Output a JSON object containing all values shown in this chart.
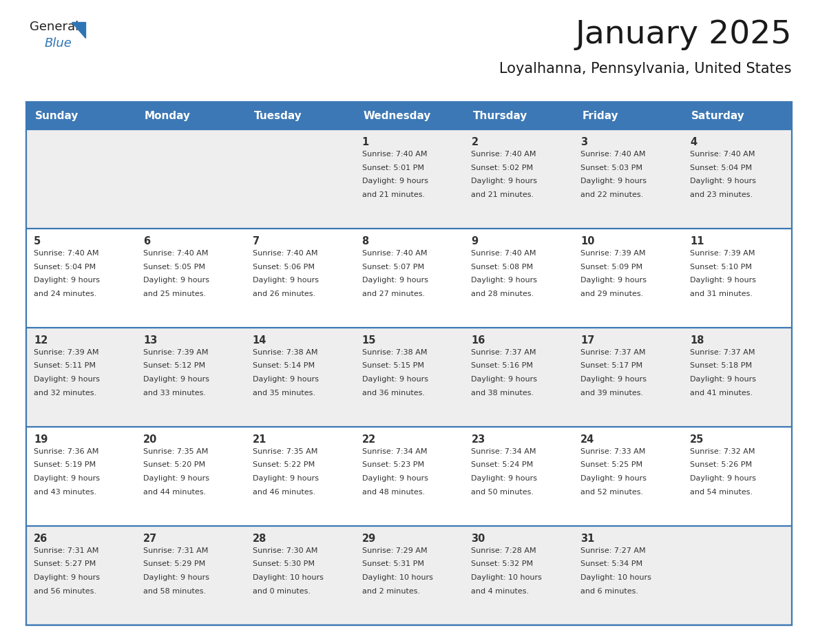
{
  "title": "January 2025",
  "subtitle": "Loyalhanna, Pennsylvania, United States",
  "days_of_week": [
    "Sunday",
    "Monday",
    "Tuesday",
    "Wednesday",
    "Thursday",
    "Friday",
    "Saturday"
  ],
  "header_bg": "#3c78b5",
  "header_text_color": "#FFFFFF",
  "row_bg_gray": "#EEEEEE",
  "row_bg_white": "#FFFFFF",
  "separator_color": "#3c78b5",
  "text_color": "#333333",
  "title_color": "#1a1a1a",
  "logo_general_color": "#222222",
  "logo_blue_color": "#2E75B6",
  "calendar_data": [
    [
      null,
      null,
      null,
      {
        "day": 1,
        "sunrise": "7:40 AM",
        "sunset": "5:01 PM",
        "daylight_h": "9 hours",
        "daylight_m": "21 minutes"
      },
      {
        "day": 2,
        "sunrise": "7:40 AM",
        "sunset": "5:02 PM",
        "daylight_h": "9 hours",
        "daylight_m": "21 minutes"
      },
      {
        "day": 3,
        "sunrise": "7:40 AM",
        "sunset": "5:03 PM",
        "daylight_h": "9 hours",
        "daylight_m": "22 minutes"
      },
      {
        "day": 4,
        "sunrise": "7:40 AM",
        "sunset": "5:04 PM",
        "daylight_h": "9 hours",
        "daylight_m": "23 minutes"
      }
    ],
    [
      {
        "day": 5,
        "sunrise": "7:40 AM",
        "sunset": "5:04 PM",
        "daylight_h": "9 hours",
        "daylight_m": "24 minutes"
      },
      {
        "day": 6,
        "sunrise": "7:40 AM",
        "sunset": "5:05 PM",
        "daylight_h": "9 hours",
        "daylight_m": "25 minutes"
      },
      {
        "day": 7,
        "sunrise": "7:40 AM",
        "sunset": "5:06 PM",
        "daylight_h": "9 hours",
        "daylight_m": "26 minutes"
      },
      {
        "day": 8,
        "sunrise": "7:40 AM",
        "sunset": "5:07 PM",
        "daylight_h": "9 hours",
        "daylight_m": "27 minutes"
      },
      {
        "day": 9,
        "sunrise": "7:40 AM",
        "sunset": "5:08 PM",
        "daylight_h": "9 hours",
        "daylight_m": "28 minutes"
      },
      {
        "day": 10,
        "sunrise": "7:39 AM",
        "sunset": "5:09 PM",
        "daylight_h": "9 hours",
        "daylight_m": "29 minutes"
      },
      {
        "day": 11,
        "sunrise": "7:39 AM",
        "sunset": "5:10 PM",
        "daylight_h": "9 hours",
        "daylight_m": "31 minutes"
      }
    ],
    [
      {
        "day": 12,
        "sunrise": "7:39 AM",
        "sunset": "5:11 PM",
        "daylight_h": "9 hours",
        "daylight_m": "32 minutes"
      },
      {
        "day": 13,
        "sunrise": "7:39 AM",
        "sunset": "5:12 PM",
        "daylight_h": "9 hours",
        "daylight_m": "33 minutes"
      },
      {
        "day": 14,
        "sunrise": "7:38 AM",
        "sunset": "5:14 PM",
        "daylight_h": "9 hours",
        "daylight_m": "35 minutes"
      },
      {
        "day": 15,
        "sunrise": "7:38 AM",
        "sunset": "5:15 PM",
        "daylight_h": "9 hours",
        "daylight_m": "36 minutes"
      },
      {
        "day": 16,
        "sunrise": "7:37 AM",
        "sunset": "5:16 PM",
        "daylight_h": "9 hours",
        "daylight_m": "38 minutes"
      },
      {
        "day": 17,
        "sunrise": "7:37 AM",
        "sunset": "5:17 PM",
        "daylight_h": "9 hours",
        "daylight_m": "39 minutes"
      },
      {
        "day": 18,
        "sunrise": "7:37 AM",
        "sunset": "5:18 PM",
        "daylight_h": "9 hours",
        "daylight_m": "41 minutes"
      }
    ],
    [
      {
        "day": 19,
        "sunrise": "7:36 AM",
        "sunset": "5:19 PM",
        "daylight_h": "9 hours",
        "daylight_m": "43 minutes"
      },
      {
        "day": 20,
        "sunrise": "7:35 AM",
        "sunset": "5:20 PM",
        "daylight_h": "9 hours",
        "daylight_m": "44 minutes"
      },
      {
        "day": 21,
        "sunrise": "7:35 AM",
        "sunset": "5:22 PM",
        "daylight_h": "9 hours",
        "daylight_m": "46 minutes"
      },
      {
        "day": 22,
        "sunrise": "7:34 AM",
        "sunset": "5:23 PM",
        "daylight_h": "9 hours",
        "daylight_m": "48 minutes"
      },
      {
        "day": 23,
        "sunrise": "7:34 AM",
        "sunset": "5:24 PM",
        "daylight_h": "9 hours",
        "daylight_m": "50 minutes"
      },
      {
        "day": 24,
        "sunrise": "7:33 AM",
        "sunset": "5:25 PM",
        "daylight_h": "9 hours",
        "daylight_m": "52 minutes"
      },
      {
        "day": 25,
        "sunrise": "7:32 AM",
        "sunset": "5:26 PM",
        "daylight_h": "9 hours",
        "daylight_m": "54 minutes"
      }
    ],
    [
      {
        "day": 26,
        "sunrise": "7:31 AM",
        "sunset": "5:27 PM",
        "daylight_h": "9 hours",
        "daylight_m": "56 minutes"
      },
      {
        "day": 27,
        "sunrise": "7:31 AM",
        "sunset": "5:29 PM",
        "daylight_h": "9 hours",
        "daylight_m": "58 minutes"
      },
      {
        "day": 28,
        "sunrise": "7:30 AM",
        "sunset": "5:30 PM",
        "daylight_h": "10 hours",
        "daylight_m": "0 minutes"
      },
      {
        "day": 29,
        "sunrise": "7:29 AM",
        "sunset": "5:31 PM",
        "daylight_h": "10 hours",
        "daylight_m": "2 minutes"
      },
      {
        "day": 30,
        "sunrise": "7:28 AM",
        "sunset": "5:32 PM",
        "daylight_h": "10 hours",
        "daylight_m": "4 minutes"
      },
      {
        "day": 31,
        "sunrise": "7:27 AM",
        "sunset": "5:34 PM",
        "daylight_h": "10 hours",
        "daylight_m": "6 minutes"
      },
      null
    ]
  ]
}
